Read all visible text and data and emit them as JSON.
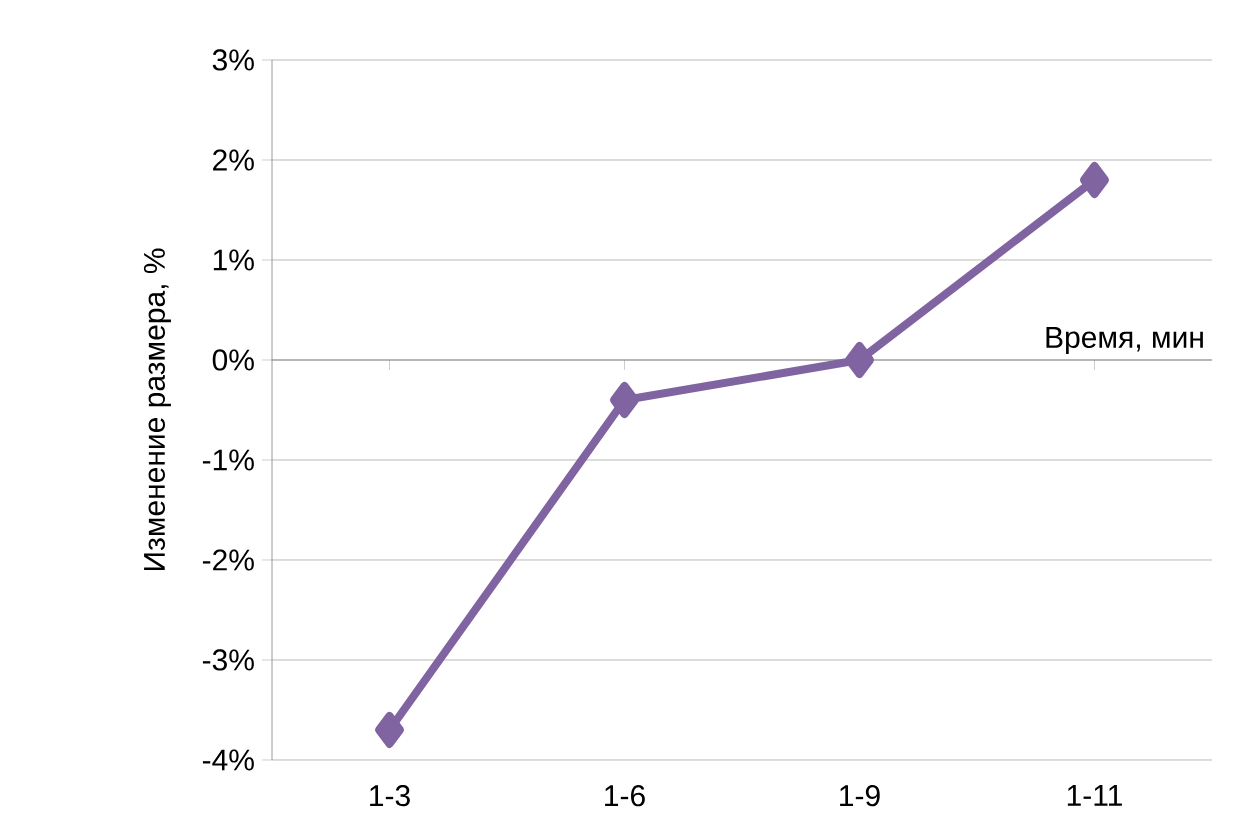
{
  "chart_data": {
    "type": "line",
    "xlabel": "Время, мин",
    "ylabel": "Изменение размера, %",
    "categories": [
      "1-3",
      "1-6",
      "1-9",
      "1-11"
    ],
    "series": [
      {
        "color": "#8064a2",
        "values": [
          -3.7,
          -0.4,
          0.0,
          1.8
        ]
      }
    ],
    "ylim": [
      -4,
      3
    ],
    "yticks": [
      {
        "value": -4,
        "label": "-4%"
      },
      {
        "value": -3,
        "label": "-3%"
      },
      {
        "value": -2,
        "label": "-2%"
      },
      {
        "value": -1,
        "label": "-1%"
      },
      {
        "value": 0,
        "label": "0%"
      },
      {
        "value": 1,
        "label": "1%"
      },
      {
        "value": 2,
        "label": "2%"
      },
      {
        "value": 3,
        "label": "3%"
      }
    ],
    "grid": "y",
    "marker": "diamond",
    "line_style": "solid"
  }
}
